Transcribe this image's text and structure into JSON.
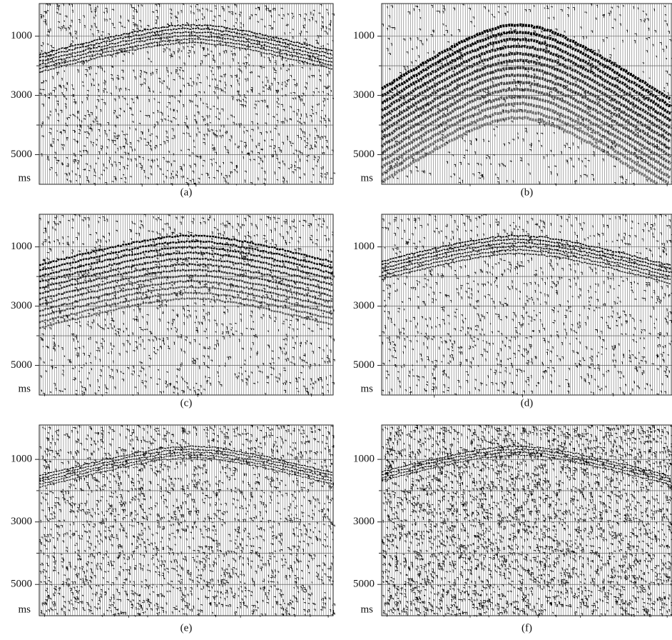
{
  "panels": [
    {
      "caption": "(a)",
      "yticks": [
        1000,
        3000,
        5000
      ],
      "minor_yticks": [
        2000,
        4000
      ],
      "ylim": [
        -100,
        6000
      ],
      "unit": "ms"
    },
    {
      "caption": "(b)",
      "yticks": [
        1000,
        3000,
        5000
      ],
      "minor_yticks": [
        2000,
        4000
      ],
      "ylim": [
        -100,
        6000
      ],
      "unit": "ms"
    },
    {
      "caption": "(c)",
      "yticks": [
        1000,
        3000,
        5000
      ],
      "minor_yticks": [
        2000,
        4000
      ],
      "ylim": [
        -100,
        6000
      ],
      "unit": "ms"
    },
    {
      "caption": "(d)",
      "yticks": [
        1000,
        3000,
        5000
      ],
      "minor_yticks": [
        2000,
        4000
      ],
      "ylim": [
        -100,
        6000
      ],
      "unit": "ms"
    },
    {
      "caption": "(e)",
      "yticks": [
        1000,
        3000,
        5000
      ],
      "minor_yticks": [
        2000,
        4000
      ],
      "ylim": [
        -100,
        6000
      ],
      "unit": "ms"
    },
    {
      "caption": "(f)",
      "yticks": [
        1000,
        3000,
        5000
      ],
      "minor_yticks": [
        2000,
        4000
      ],
      "ylim": [
        -100,
        6000
      ],
      "unit": "ms"
    }
  ]
}
